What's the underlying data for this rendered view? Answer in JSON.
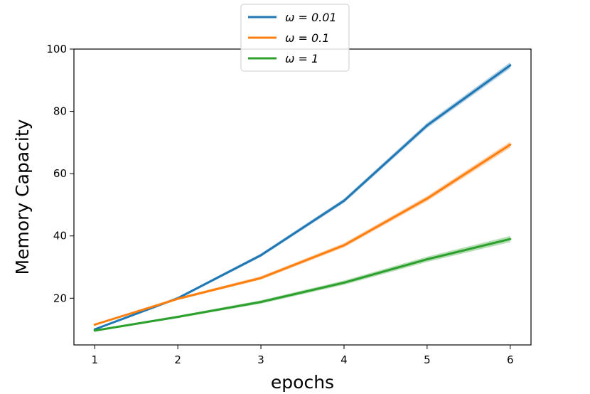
{
  "chart_data": {
    "type": "line",
    "title": "",
    "xlabel": "epochs",
    "ylabel": "Memory Capacity",
    "x": [
      1,
      2,
      3,
      4,
      5,
      6
    ],
    "xticks": [
      "1",
      "2",
      "3",
      "4",
      "5",
      "6"
    ],
    "yticks": [
      "20",
      "40",
      "60",
      "80",
      "100"
    ],
    "xlim": [
      0.75,
      6.25
    ],
    "ylim": [
      5,
      100
    ],
    "grid": false,
    "legend_position": "top-center",
    "series": [
      {
        "name": "ω = 0.01",
        "color": "#1f77b4",
        "values": [
          10.0,
          20.0,
          33.8,
          51.3,
          75.5,
          94.8
        ]
      },
      {
        "name": "ω = 0.1",
        "color": "#ff7f0e",
        "values": [
          11.5,
          19.8,
          26.5,
          37.0,
          52.0,
          69.3
        ]
      },
      {
        "name": "ω = 1",
        "color": "#2ca02c",
        "values": [
          9.6,
          14.0,
          18.8,
          25.0,
          32.5,
          39.0
        ]
      }
    ]
  }
}
